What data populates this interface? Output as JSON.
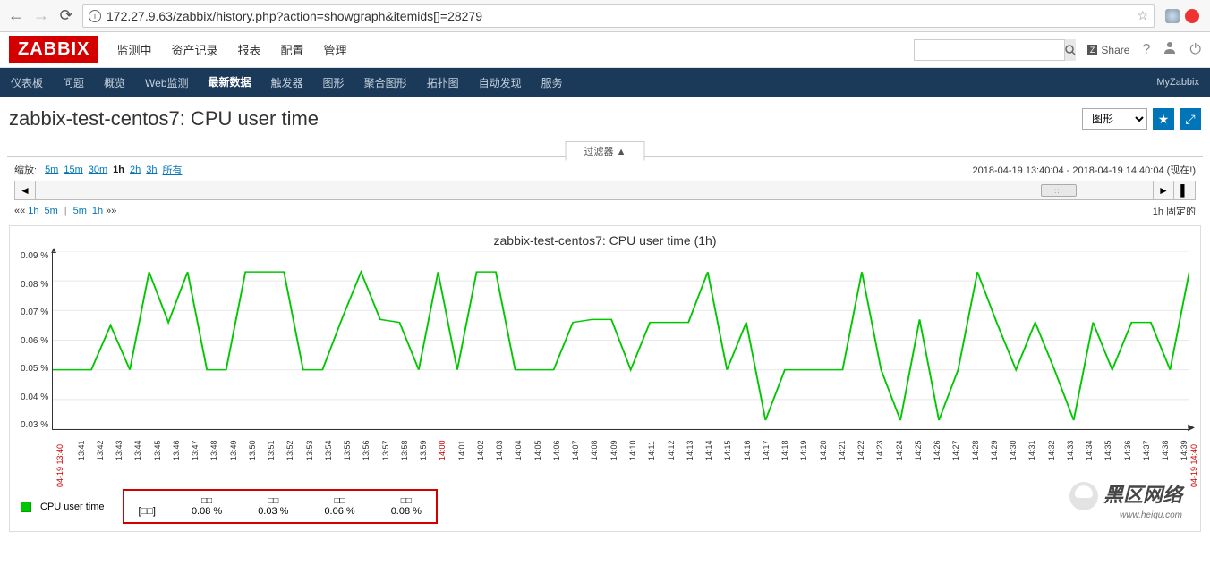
{
  "browser": {
    "url": "172.27.9.63/zabbix/history.php?action=showgraph&itemids[]=28279"
  },
  "header": {
    "logo": "ZABBIX",
    "menu": [
      "监测中",
      "资产记录",
      "报表",
      "配置",
      "管理"
    ],
    "share": "Share"
  },
  "subnav": {
    "items": [
      "仪表板",
      "问题",
      "概览",
      "Web监测",
      "最新数据",
      "触发器",
      "图形",
      "聚合图形",
      "拓扑图",
      "自动发现",
      "服务"
    ],
    "active_index": 4,
    "right": "MyZabbix"
  },
  "page": {
    "title": "zabbix-test-centos7: CPU user time",
    "view_select": "图形"
  },
  "filter": {
    "tab": "过滤器 ▲"
  },
  "zoom": {
    "label": "缩放:",
    "options": [
      "5m",
      "15m",
      "30m",
      "1h",
      "2h",
      "3h",
      "所有"
    ],
    "active_index": 3,
    "range_text": "2018-04-19 13:40:04 - 2018-04-19 14:40:04 (现在!)"
  },
  "quicknav": {
    "left_left": [
      "1h",
      "5m"
    ],
    "left_right": [
      "5m",
      "1h"
    ],
    "right": "1h  固定的"
  },
  "chart": {
    "title": "zabbix-test-centos7: CPU user time (1h)",
    "type": "line",
    "series_color": "#00c800",
    "background_color": "#ffffff",
    "grid_color": "#e8e8e8",
    "ylim": [
      0.03,
      0.09
    ],
    "yticks": [
      "0.09 %",
      "0.08 %",
      "0.07 %",
      "0.06 %",
      "0.05 %",
      "0.04 %",
      "0.03 %"
    ],
    "x_start_label": "04-19 13:40",
    "x_end_label": "04-19 14:40",
    "x_red_index": 20,
    "xticks": [
      "13:41",
      "13:42",
      "13:43",
      "13:44",
      "13:45",
      "13:46",
      "13:47",
      "13:48",
      "13:49",
      "13:50",
      "13:51",
      "13:52",
      "13:53",
      "13:54",
      "13:55",
      "13:56",
      "13:57",
      "13:58",
      "13:59",
      "14:00",
      "14:01",
      "14:02",
      "14:03",
      "14:04",
      "14:05",
      "14:06",
      "14:07",
      "14:08",
      "14:09",
      "14:10",
      "14:11",
      "14:12",
      "14:13",
      "14:14",
      "14:15",
      "14:16",
      "14:17",
      "14:18",
      "14:19",
      "14:20",
      "14:21",
      "14:22",
      "14:23",
      "14:24",
      "14:25",
      "14:26",
      "14:27",
      "14:28",
      "14:29",
      "14:30",
      "14:31",
      "14:32",
      "14:33",
      "14:34",
      "14:35",
      "14:36",
      "14:37",
      "14:38",
      "14:39"
    ],
    "values": [
      0.05,
      0.05,
      0.05,
      0.065,
      0.05,
      0.083,
      0.066,
      0.083,
      0.05,
      0.05,
      0.083,
      0.083,
      0.083,
      0.05,
      0.05,
      0.067,
      0.083,
      0.067,
      0.066,
      0.05,
      0.083,
      0.05,
      0.083,
      0.083,
      0.05,
      0.05,
      0.05,
      0.066,
      0.067,
      0.067,
      0.05,
      0.066,
      0.066,
      0.066,
      0.083,
      0.05,
      0.066,
      0.033,
      0.05,
      0.05,
      0.05,
      0.05,
      0.083,
      0.05,
      0.033,
      0.067,
      0.033,
      0.05,
      0.083,
      0.066,
      0.05,
      0.066,
      0.05,
      0.033,
      0.066,
      0.05,
      0.066,
      0.066,
      0.05,
      0.083
    ],
    "legend_name": "CPU user time",
    "stats": {
      "headers": [
        "□□",
        "□□",
        "□□",
        "□□"
      ],
      "type_col": "[□□]",
      "values": [
        "0.08 %",
        "0.03 %",
        "0.06 %",
        "0.08 %"
      ]
    }
  },
  "watermark": {
    "text": "黑区网络",
    "sub": "www.heiqu.com"
  }
}
